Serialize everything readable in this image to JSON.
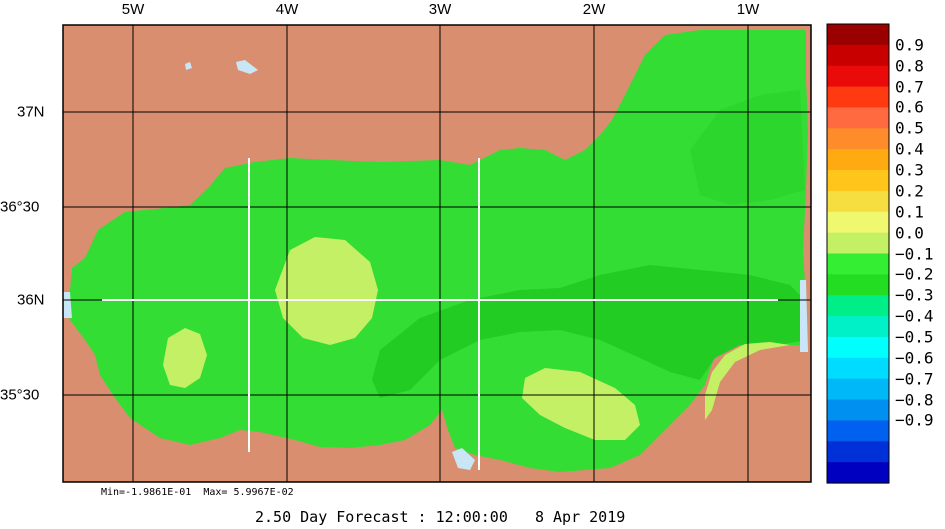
{
  "map": {
    "lon_labels": [
      "5W",
      "4W",
      "3W",
      "2W",
      "1W"
    ],
    "lat_labels": [
      "37N",
      "36°30",
      "36N",
      "35°30"
    ],
    "colors": {
      "land": "#d98f6f",
      "ocean_main": "#33dd33",
      "ocean_dark": "#22cc22",
      "ocean_light": "#c4f066",
      "shallow": "#c8e6f5"
    }
  },
  "legend": {
    "levels": [
      {
        "label": "0.9",
        "color": "#9b0000"
      },
      {
        "label": "0.8",
        "color": "#c80000"
      },
      {
        "label": "0.7",
        "color": "#ea0a0a"
      },
      {
        "label": "0.6",
        "color": "#ff3a10"
      },
      {
        "label": "0.5",
        "color": "#ff6a40"
      },
      {
        "label": "0.4",
        "color": "#ff8c2a"
      },
      {
        "label": "0.3",
        "color": "#ffaa10"
      },
      {
        "label": "0.2",
        "color": "#ffc51a"
      },
      {
        "label": "0.1",
        "color": "#f6dd40"
      },
      {
        "label": "0.0",
        "color": "#f0f870"
      },
      {
        "label": "−0.1",
        "color": "#c4f066"
      },
      {
        "label": "−0.2",
        "color": "#33ee33"
      },
      {
        "label": "−0.3",
        "color": "#22dd22"
      },
      {
        "label": "−0.4",
        "color": "#00ee88"
      },
      {
        "label": "−0.5",
        "color": "#00f0c8"
      },
      {
        "label": "−0.6",
        "color": "#00ffff"
      },
      {
        "label": "−0.7",
        "color": "#00dcff"
      },
      {
        "label": "−0.8",
        "color": "#00b8f8"
      },
      {
        "label": "−0.9",
        "color": "#0090f0"
      },
      {
        "label": "",
        "color": "#0060f0"
      },
      {
        "label": "",
        "color": "#0030d8"
      },
      {
        "label": "",
        "color": "#0000c0"
      }
    ]
  },
  "footer": {
    "minmax": "Min=-1.9861E-01  Max= 5.9967E-02",
    "forecast": "2.50 Day Forecast : 12:00:00   8 Apr 2019"
  }
}
